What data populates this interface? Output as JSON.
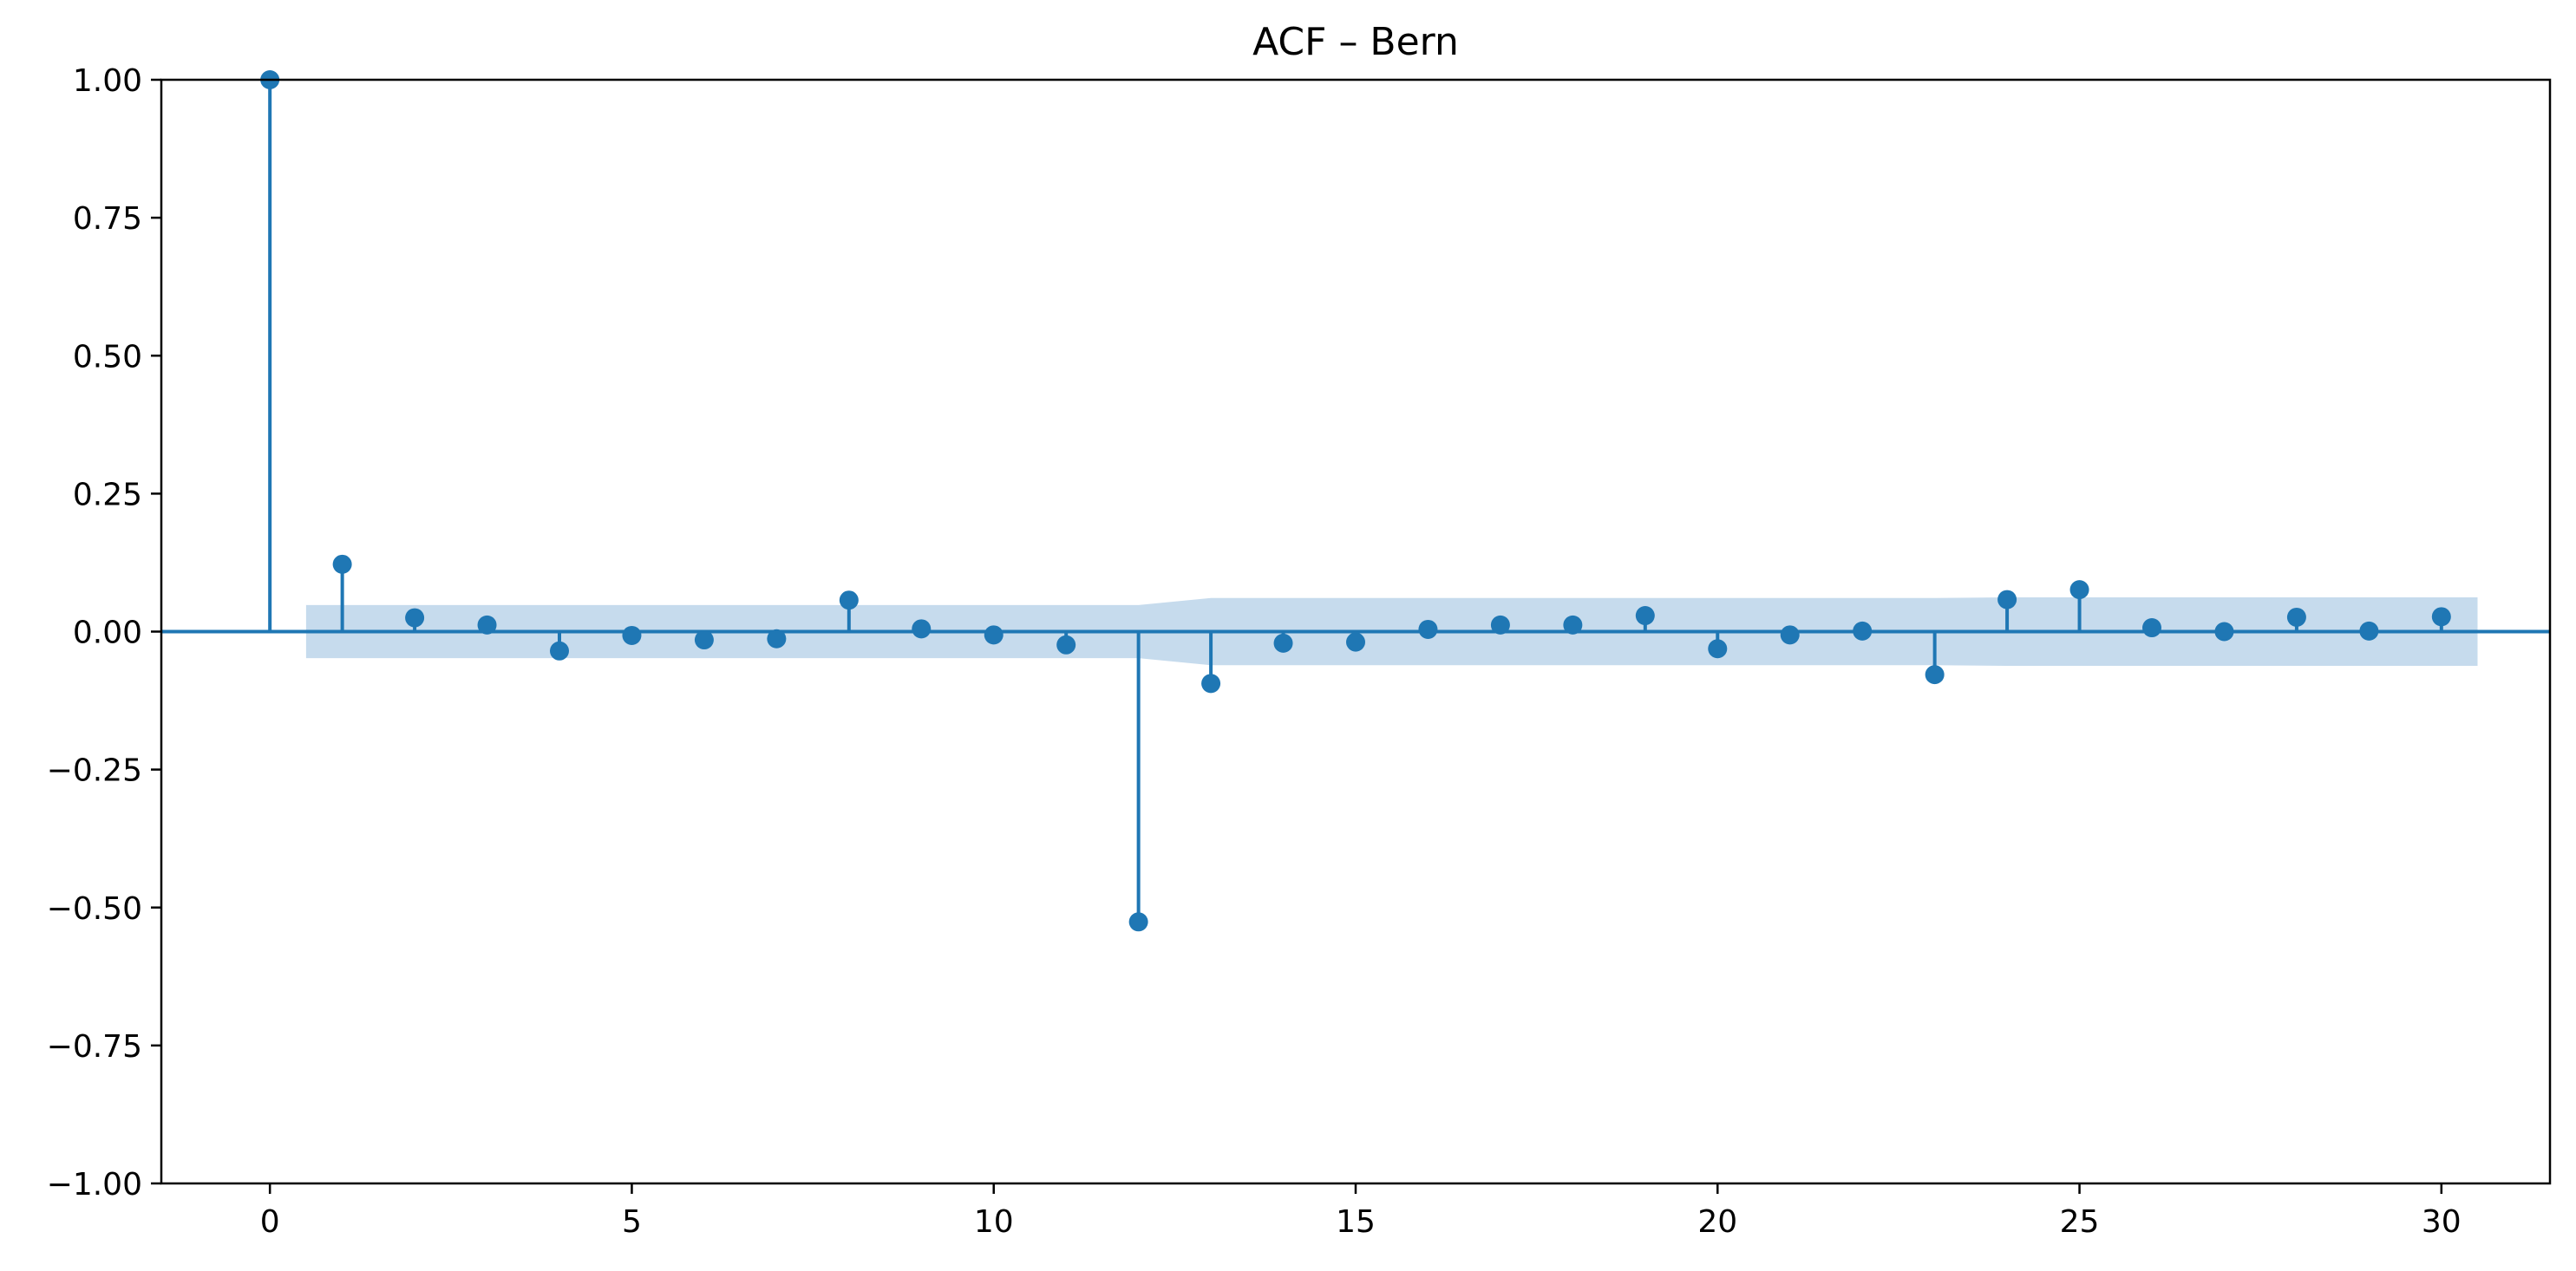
{
  "chart_data": {
    "type": "stem",
    "title": "ACF – Bern",
    "xlabel": "",
    "ylabel": "",
    "xlim": [
      -1.5,
      31.5
    ],
    "ylim": [
      -1.0,
      1.0
    ],
    "xticks": [
      0,
      5,
      10,
      15,
      20,
      25,
      30
    ],
    "yticks": [
      -1.0,
      -0.75,
      -0.5,
      -0.25,
      0.0,
      0.25,
      0.5,
      0.75,
      1.0
    ],
    "ytick_labels": [
      "−1.00",
      "−0.75",
      "−0.50",
      "−0.25",
      "0.00",
      "0.25",
      "0.50",
      "0.75",
      "1.00"
    ],
    "xtick_labels": [
      "0",
      "5",
      "10",
      "15",
      "20",
      "25",
      "30"
    ],
    "grid": false,
    "series": [
      {
        "x": [
          0,
          1,
          2,
          3,
          4,
          5,
          6,
          7,
          8,
          9,
          10,
          11,
          12,
          13,
          14,
          15,
          16,
          17,
          18,
          19,
          20,
          21,
          22,
          23,
          24,
          25,
          26,
          27,
          28,
          29,
          30
        ],
        "values": [
          1.0,
          0.122,
          0.025,
          0.012,
          -0.035,
          -0.007,
          -0.015,
          -0.013,
          0.057,
          0.005,
          -0.006,
          -0.024,
          -0.526,
          -0.094,
          -0.021,
          -0.019,
          0.004,
          0.012,
          0.012,
          0.029,
          -0.031,
          -0.006,
          0.001,
          -0.078,
          0.058,
          0.076,
          0.007,
          0.0,
          0.026,
          0.001,
          0.027
        ]
      }
    ],
    "confidence_band": {
      "x": [
        0.5,
        1,
        2,
        3,
        4,
        5,
        6,
        7,
        8,
        9,
        10,
        11,
        12,
        13,
        14,
        15,
        16,
        17,
        18,
        19,
        20,
        21,
        22,
        23,
        24,
        25,
        26,
        27,
        28,
        29,
        30,
        30.5
      ],
      "upper": [
        0.048,
        0.048,
        0.048,
        0.048,
        0.048,
        0.048,
        0.048,
        0.048,
        0.048,
        0.048,
        0.048,
        0.048,
        0.048,
        0.061,
        0.061,
        0.061,
        0.061,
        0.061,
        0.061,
        0.061,
        0.061,
        0.061,
        0.061,
        0.061,
        0.062,
        0.062,
        0.062,
        0.062,
        0.062,
        0.062,
        0.062,
        0.062
      ]
    },
    "colors": {
      "stem": "#1f77b4",
      "band": "#c6dbed",
      "axis": "#000000"
    }
  }
}
